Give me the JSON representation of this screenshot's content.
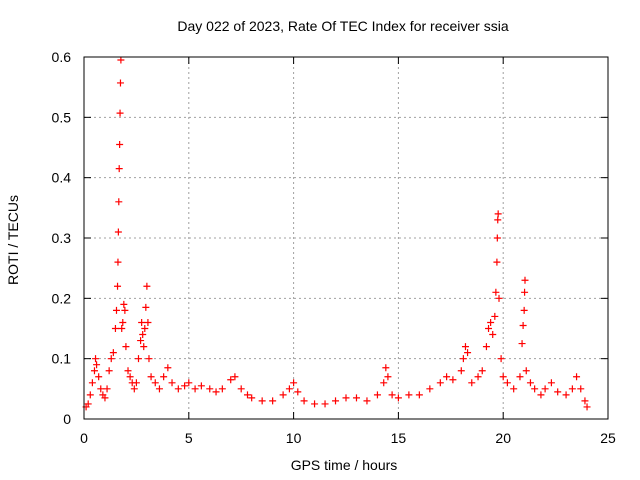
{
  "chart_data": {
    "type": "scatter",
    "title": "Day 022 of 2023, Rate Of TEC Index for receiver ssia",
    "xlabel": "GPS time / hours",
    "ylabel": "ROTI / TECUs",
    "xlim": [
      0,
      25
    ],
    "ylim": [
      0,
      0.6
    ],
    "xticks": [
      0,
      5,
      10,
      15,
      20,
      25
    ],
    "yticks": [
      0,
      0.1,
      0.2,
      0.3,
      0.4,
      0.5,
      0.6
    ],
    "xtick_labels": [
      "0",
      "5",
      "10",
      "15",
      "20",
      "25"
    ],
    "ytick_labels": [
      "0",
      "0.1",
      "0.2",
      "0.3",
      "0.4",
      "0.5",
      "0.6"
    ],
    "grid": true,
    "marker": "+",
    "colors": {
      "points": "#ff0000",
      "axes": "#000000",
      "grid": "#a0a0a0"
    },
    "series": [
      {
        "points": [
          [
            0.1,
            0.02
          ],
          [
            0.2,
            0.025
          ],
          [
            0.3,
            0.04
          ],
          [
            0.4,
            0.06
          ],
          [
            0.5,
            0.08
          ],
          [
            0.55,
            0.1
          ],
          [
            0.6,
            0.09
          ],
          [
            0.7,
            0.07
          ],
          [
            0.8,
            0.05
          ],
          [
            0.9,
            0.04
          ],
          [
            1.0,
            0.035
          ],
          [
            1.1,
            0.05
          ],
          [
            1.2,
            0.08
          ],
          [
            1.3,
            0.1
          ],
          [
            1.4,
            0.11
          ],
          [
            1.5,
            0.15
          ],
          [
            1.55,
            0.18
          ],
          [
            1.6,
            0.22
          ],
          [
            1.62,
            0.26
          ],
          [
            1.64,
            0.31
          ],
          [
            1.66,
            0.36
          ],
          [
            1.68,
            0.415
          ],
          [
            1.7,
            0.455
          ],
          [
            1.72,
            0.507
          ],
          [
            1.74,
            0.557
          ],
          [
            1.76,
            0.595
          ],
          [
            1.8,
            0.15
          ],
          [
            1.85,
            0.16
          ],
          [
            1.9,
            0.19
          ],
          [
            1.95,
            0.18
          ],
          [
            2.0,
            0.12
          ],
          [
            2.1,
            0.08
          ],
          [
            2.2,
            0.07
          ],
          [
            2.3,
            0.06
          ],
          [
            2.4,
            0.05
          ],
          [
            2.5,
            0.06
          ],
          [
            2.6,
            0.1
          ],
          [
            2.7,
            0.13
          ],
          [
            2.75,
            0.16
          ],
          [
            2.8,
            0.14
          ],
          [
            2.85,
            0.12
          ],
          [
            2.9,
            0.15
          ],
          [
            2.95,
            0.185
          ],
          [
            3.0,
            0.22
          ],
          [
            3.05,
            0.16
          ],
          [
            3.1,
            0.1
          ],
          [
            3.2,
            0.07
          ],
          [
            3.4,
            0.06
          ],
          [
            3.6,
            0.05
          ],
          [
            3.8,
            0.07
          ],
          [
            4.0,
            0.085
          ],
          [
            4.2,
            0.06
          ],
          [
            4.5,
            0.05
          ],
          [
            4.8,
            0.055
          ],
          [
            5.0,
            0.06
          ],
          [
            5.3,
            0.05
          ],
          [
            5.6,
            0.055
          ],
          [
            6.0,
            0.05
          ],
          [
            6.3,
            0.045
          ],
          [
            6.6,
            0.05
          ],
          [
            7.0,
            0.065
          ],
          [
            7.2,
            0.07
          ],
          [
            7.5,
            0.05
          ],
          [
            7.8,
            0.04
          ],
          [
            8.0,
            0.035
          ],
          [
            8.5,
            0.03
          ],
          [
            9.0,
            0.03
          ],
          [
            9.5,
            0.04
          ],
          [
            9.8,
            0.05
          ],
          [
            10.0,
            0.06
          ],
          [
            10.2,
            0.045
          ],
          [
            10.5,
            0.03
          ],
          [
            11.0,
            0.025
          ],
          [
            11.5,
            0.025
          ],
          [
            12.0,
            0.03
          ],
          [
            12.5,
            0.035
          ],
          [
            13.0,
            0.035
          ],
          [
            13.5,
            0.03
          ],
          [
            14.0,
            0.04
          ],
          [
            14.3,
            0.06
          ],
          [
            14.4,
            0.085
          ],
          [
            14.5,
            0.07
          ],
          [
            14.7,
            0.04
          ],
          [
            15.0,
            0.035
          ],
          [
            15.5,
            0.04
          ],
          [
            16.0,
            0.04
          ],
          [
            16.5,
            0.05
          ],
          [
            17.0,
            0.06
          ],
          [
            17.3,
            0.07
          ],
          [
            17.6,
            0.065
          ],
          [
            18.0,
            0.08
          ],
          [
            18.1,
            0.1
          ],
          [
            18.2,
            0.12
          ],
          [
            18.3,
            0.11
          ],
          [
            18.5,
            0.06
          ],
          [
            18.8,
            0.07
          ],
          [
            19.0,
            0.08
          ],
          [
            19.2,
            0.12
          ],
          [
            19.3,
            0.15
          ],
          [
            19.4,
            0.16
          ],
          [
            19.5,
            0.14
          ],
          [
            19.6,
            0.17
          ],
          [
            19.65,
            0.21
          ],
          [
            19.7,
            0.26
          ],
          [
            19.72,
            0.3
          ],
          [
            19.74,
            0.33
          ],
          [
            19.76,
            0.34
          ],
          [
            19.8,
            0.2
          ],
          [
            19.9,
            0.1
          ],
          [
            20.0,
            0.07
          ],
          [
            20.2,
            0.06
          ],
          [
            20.5,
            0.05
          ],
          [
            20.8,
            0.07
          ],
          [
            20.9,
            0.125
          ],
          [
            20.95,
            0.155
          ],
          [
            21.0,
            0.18
          ],
          [
            21.02,
            0.21
          ],
          [
            21.04,
            0.23
          ],
          [
            21.1,
            0.08
          ],
          [
            21.3,
            0.06
          ],
          [
            21.5,
            0.05
          ],
          [
            21.8,
            0.04
          ],
          [
            22.0,
            0.05
          ],
          [
            22.3,
            0.06
          ],
          [
            22.6,
            0.045
          ],
          [
            23.0,
            0.04
          ],
          [
            23.3,
            0.05
          ],
          [
            23.5,
            0.07
          ],
          [
            23.7,
            0.05
          ],
          [
            23.9,
            0.03
          ],
          [
            24.0,
            0.02
          ]
        ]
      }
    ]
  }
}
